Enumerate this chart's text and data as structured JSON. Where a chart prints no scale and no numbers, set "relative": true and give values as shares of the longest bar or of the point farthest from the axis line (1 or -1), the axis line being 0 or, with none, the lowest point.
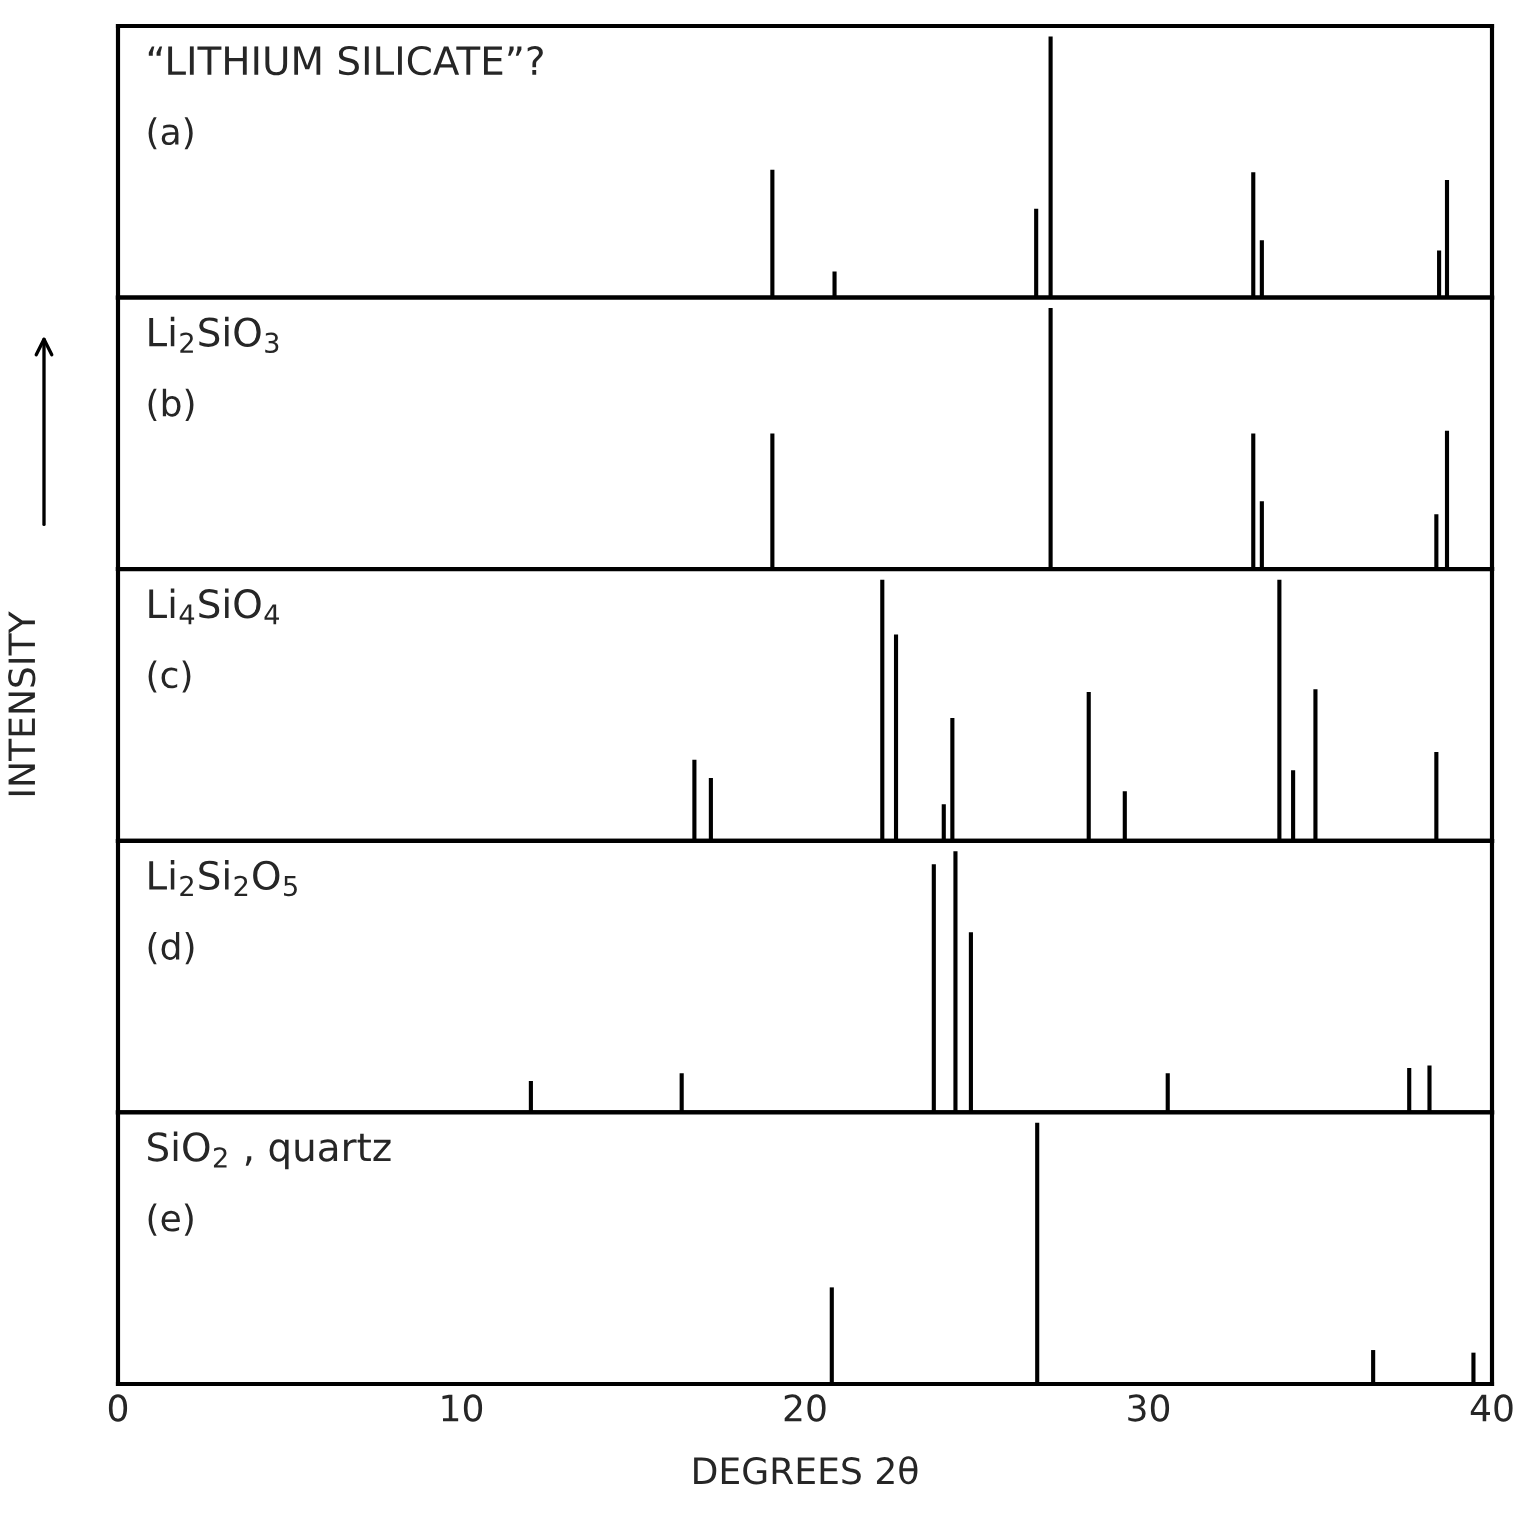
{
  "chart_data": [
    {
      "type": "bar",
      "title": "“LITHIUM SILICATE”?",
      "annotations": [
        "(a)"
      ],
      "relative": true,
      "x": [
        19.05,
        20.86,
        26.73,
        27.15,
        33.05,
        33.3,
        38.46,
        38.69
      ],
      "values": [
        0.49,
        0.1,
        0.34,
        1.0,
        0.48,
        0.22,
        0.18,
        0.45
      ],
      "color": "#000000",
      "xlim": [
        0,
        40
      ],
      "xticks": [
        0,
        10,
        20,
        30,
        40
      ],
      "tick_labels": false
    },
    {
      "type": "bar",
      "title": "Li$_{2}$SiO$_{3}$",
      "annotations": [
        "(b)"
      ],
      "relative": true,
      "x": [
        19.05,
        27.15,
        33.05,
        33.3,
        38.38,
        38.69
      ],
      "values": [
        0.52,
        1.0,
        0.52,
        0.26,
        0.21,
        0.53
      ],
      "color": "#000000",
      "xlim": [
        0,
        40
      ],
      "xticks": [
        0,
        10,
        20,
        30,
        40
      ],
      "tick_labels": false
    },
    {
      "type": "bar",
      "title": "Li$_{4}$SiO$_{4}$",
      "annotations": [
        "(c)"
      ],
      "ylabel": "INTENSITY",
      "relative": true,
      "x": [
        16.78,
        17.26,
        22.25,
        22.65,
        24.04,
        24.29,
        28.26,
        29.31,
        33.81,
        34.21,
        34.86,
        38.38
      ],
      "values": [
        0.31,
        0.24,
        1.0,
        0.79,
        0.14,
        0.47,
        0.57,
        0.19,
        1.0,
        0.27,
        0.58,
        0.34
      ],
      "color": "#000000",
      "xlim": [
        0,
        40
      ],
      "xticks": [
        0,
        10,
        20,
        30,
        40
      ],
      "tick_labels": false
    },
    {
      "type": "bar",
      "title": "Li$_{2}$Si$_{2}$O$_{5}$",
      "annotations": [
        "(d)"
      ],
      "relative": true,
      "x": [
        12.02,
        16.41,
        23.75,
        24.38,
        24.83,
        30.56,
        37.59,
        38.18
      ],
      "values": [
        0.12,
        0.15,
        0.95,
        1.0,
        0.69,
        0.15,
        0.17,
        0.18
      ],
      "color": "#000000",
      "xlim": [
        0,
        40
      ],
      "xticks": [
        0,
        10,
        20,
        30,
        40
      ],
      "tick_labels": false
    },
    {
      "type": "bar",
      "title": "SiO$_{2}$ , quartz",
      "annotations": [
        "(e)"
      ],
      "xlabel": "DEGREES 2θ",
      "relative": true,
      "x": [
        20.78,
        26.76,
        36.54,
        39.46
      ],
      "values": [
        0.37,
        1.0,
        0.13,
        0.12
      ],
      "color": "#000000",
      "xlim": [
        0,
        40
      ],
      "xticks": [
        0,
        10,
        20,
        30,
        40
      ],
      "tick_labels": "x"
    }
  ]
}
